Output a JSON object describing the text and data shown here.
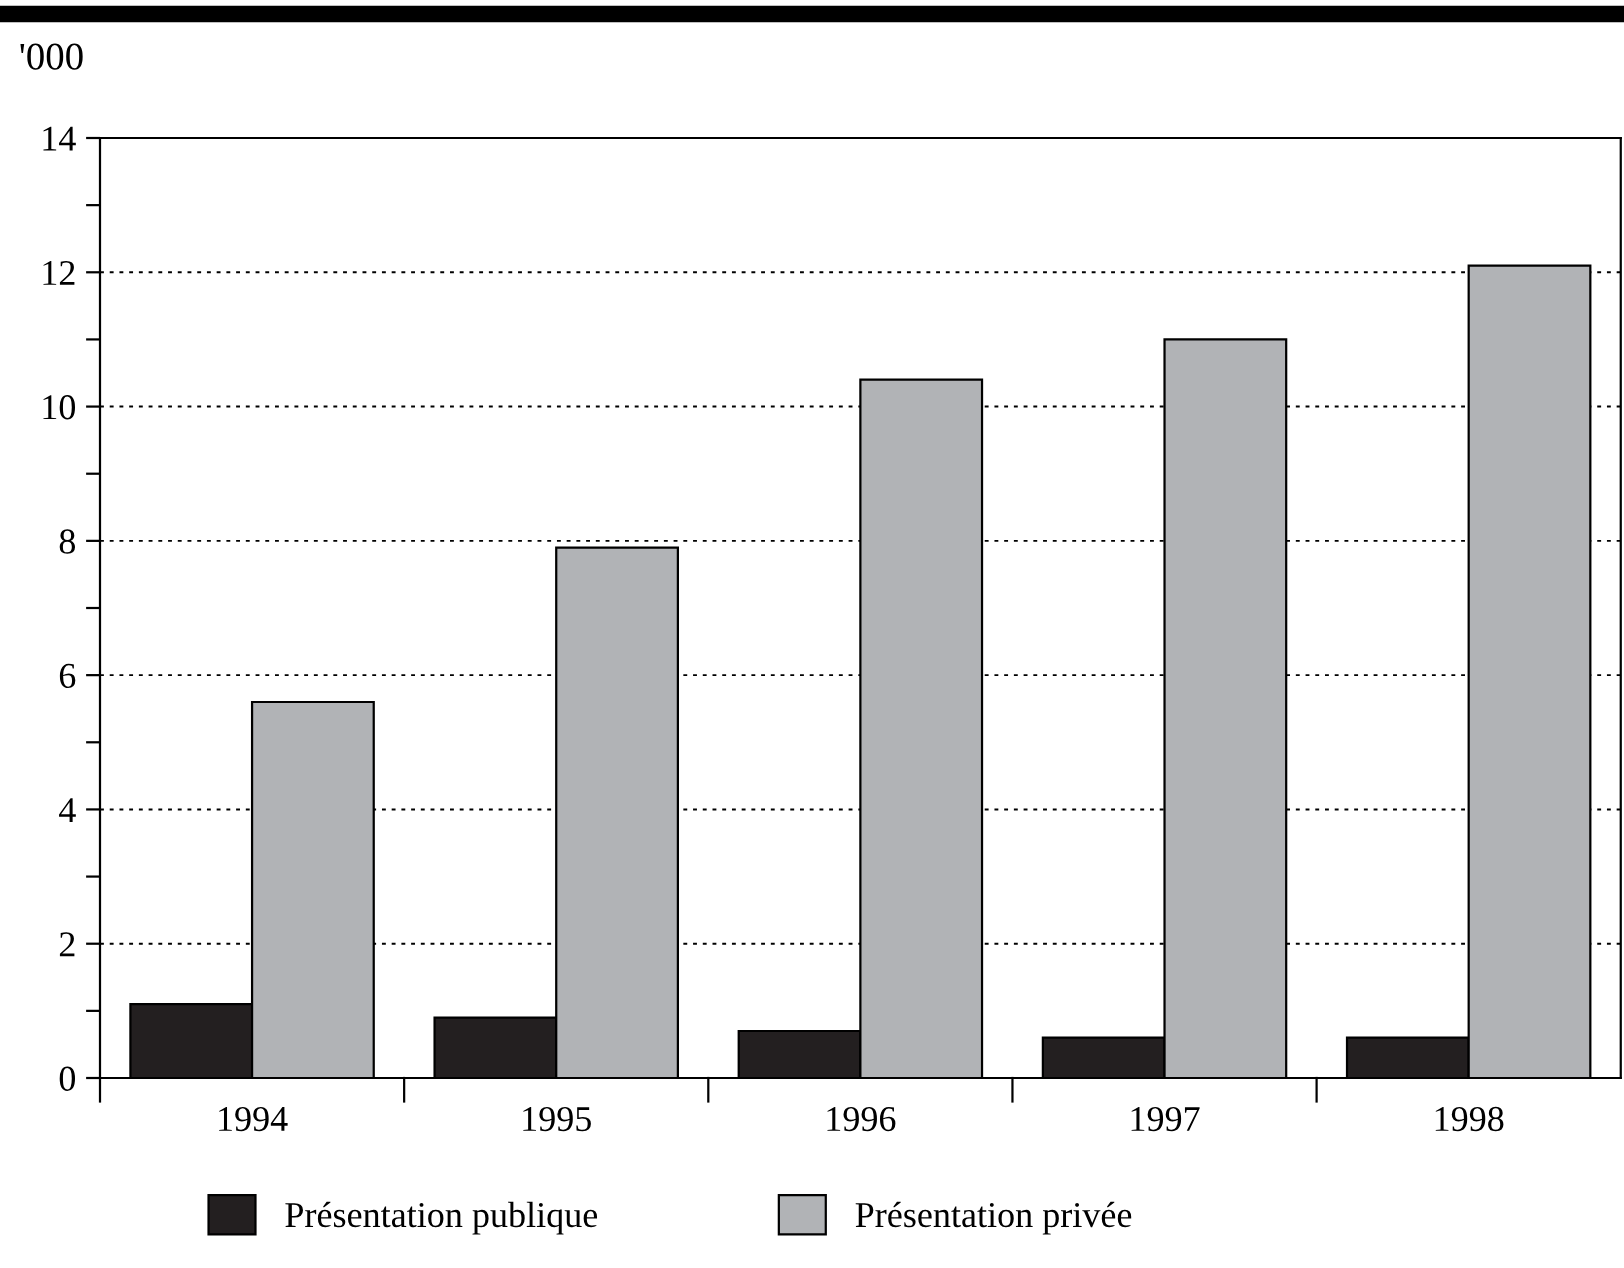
{
  "chart_data": {
    "type": "bar",
    "ylabel": "'000",
    "categories": [
      "1994",
      "1995",
      "1996",
      "1997",
      "1998"
    ],
    "series": [
      {
        "name": "Présentation publique",
        "color": "#231f20",
        "values": [
          1.1,
          0.9,
          0.7,
          0.6,
          0.6
        ]
      },
      {
        "name": "Présentation privée",
        "color": "#b1b3b6",
        "values": [
          5.6,
          7.9,
          10.4,
          11.0,
          12.1
        ]
      }
    ],
    "ylim": [
      0,
      14
    ],
    "yticks": [
      0,
      {
        "value": 1,
        "label": null
      },
      2,
      {
        "value": 3,
        "label": null
      },
      4,
      {
        "value": 5,
        "label": null
      },
      6,
      {
        "value": 7,
        "label": null
      },
      8,
      {
        "value": 9,
        "label": null
      },
      10,
      {
        "value": 11,
        "label": null
      },
      12,
      {
        "value": 13,
        "label": null
      },
      14
    ],
    "grid": "y",
    "legend": "bottom"
  }
}
